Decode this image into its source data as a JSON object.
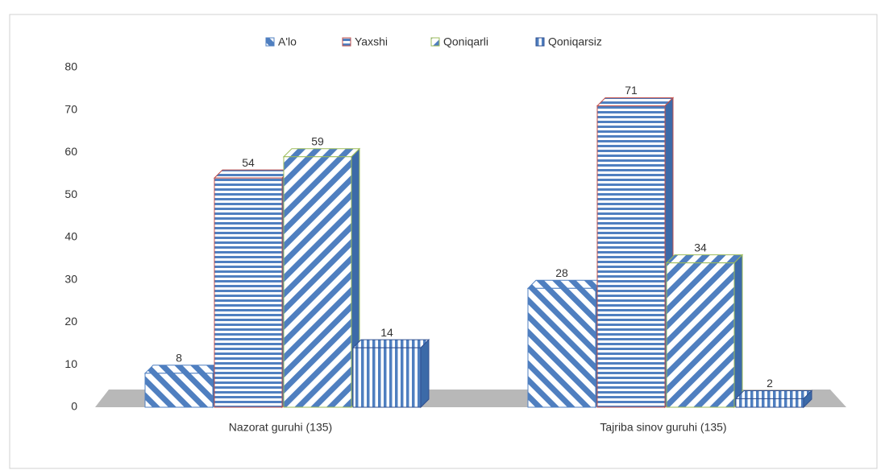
{
  "chart_data": {
    "type": "bar3d",
    "categories": [
      "Nazorat guruhi (135)",
      "Tajriba sinov guruhi (135)"
    ],
    "series": [
      {
        "name": "A'lo",
        "color": "#4f7fc0",
        "values": [
          8,
          28
        ]
      },
      {
        "name": "Yaxshi",
        "color": "#c0504d",
        "values": [
          54,
          71
        ]
      },
      {
        "name": "Qoniqarli",
        "color": "#9bbb59",
        "values": [
          59,
          34
        ]
      },
      {
        "name": "Qoniqarsiz",
        "color": "#2f4f8f",
        "values": [
          14,
          2
        ]
      }
    ],
    "ylim": [
      0,
      80
    ],
    "yticks": [
      0,
      10,
      20,
      30,
      40,
      50,
      60,
      70,
      80
    ],
    "legend": "top",
    "grid": false
  }
}
